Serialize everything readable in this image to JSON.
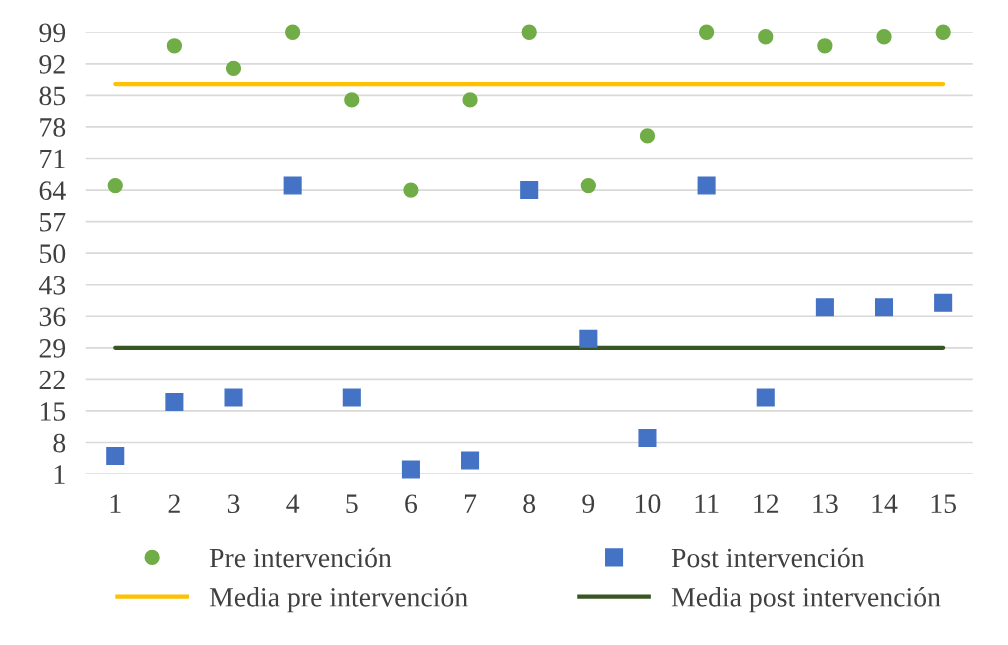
{
  "chart_data": {
    "type": "scatter",
    "categories": [
      "1",
      "2",
      "3",
      "4",
      "5",
      "6",
      "7",
      "8",
      "9",
      "10",
      "11",
      "12",
      "13",
      "14",
      "15"
    ],
    "ylim": [
      1,
      99
    ],
    "yticks": [
      1,
      8,
      15,
      22,
      29,
      36,
      43,
      50,
      57,
      64,
      71,
      78,
      85,
      92,
      99
    ],
    "grid": "y",
    "legend": "bottom",
    "series": [
      {
        "name": "Pre intervención",
        "marker": "circle",
        "color": "#70ad47",
        "values": [
          65,
          96,
          91,
          99,
          84,
          64,
          84,
          99,
          65,
          76,
          99,
          98,
          96,
          98,
          99
        ]
      },
      {
        "name": "Post intervención",
        "marker": "square",
        "color": "#4472c4",
        "values": [
          5,
          17,
          18,
          65,
          18,
          2,
          4,
          64,
          31,
          9,
          65,
          18,
          38,
          38,
          39
        ]
      },
      {
        "name": "Media pre intervención",
        "type": "line",
        "marker": "none",
        "color": "#ffc000",
        "values": [
          87.5,
          87.5,
          87.5,
          87.5,
          87.5,
          87.5,
          87.5,
          87.5,
          87.5,
          87.5,
          87.5,
          87.5,
          87.5,
          87.5,
          87.5
        ]
      },
      {
        "name": "Media post intervención",
        "type": "line",
        "marker": "none",
        "color": "#375623",
        "values": [
          29,
          29,
          29,
          29,
          29,
          29,
          29,
          29,
          29,
          29,
          29,
          29,
          29,
          29,
          29
        ]
      }
    ]
  }
}
